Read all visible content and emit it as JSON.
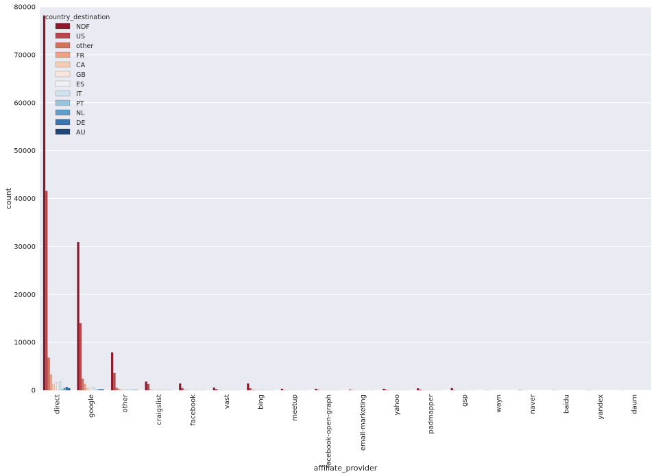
{
  "chart_data": {
    "type": "bar",
    "title": "",
    "xlabel": "affiliate_provider",
    "ylabel": "count",
    "ylim": [
      0,
      80000
    ],
    "yticks": [
      0,
      10000,
      20000,
      30000,
      40000,
      50000,
      60000,
      70000,
      80000
    ],
    "grid": true,
    "legend_title": "country_destination",
    "legend_position": "top-left",
    "categories": [
      "direct",
      "google",
      "other",
      "craigslist",
      "facebook",
      "vast",
      "bing",
      "meetup",
      "facebook-open-graph",
      "email-marketing",
      "yahoo",
      "padmapper",
      "gsp",
      "wayn",
      "naver",
      "baidu",
      "yandex",
      "daum"
    ],
    "series": [
      {
        "name": "NDF",
        "color": "#8c1a2b",
        "values": [
          78200,
          30900,
          7900,
          1800,
          1400,
          550,
          1400,
          300,
          300,
          120,
          300,
          400,
          450,
          10,
          40,
          20,
          15,
          3
        ]
      },
      {
        "name": "US",
        "color": "#b8464b",
        "values": [
          41600,
          14000,
          3600,
          1300,
          450,
          250,
          400,
          60,
          80,
          40,
          120,
          150,
          60,
          3,
          5,
          3,
          2,
          1
        ]
      },
      {
        "name": "other",
        "color": "#d6705e",
        "values": [
          6800,
          2400,
          500,
          80,
          60,
          30,
          60,
          10,
          10,
          5,
          20,
          20,
          10,
          1,
          1,
          1,
          1,
          0
        ]
      },
      {
        "name": "FR",
        "color": "#eda284",
        "values": [
          3300,
          1300,
          300,
          60,
          50,
          20,
          50,
          5,
          10,
          3,
          10,
          10,
          5,
          0,
          1,
          0,
          0,
          0
        ]
      },
      {
        "name": "CA",
        "color": "#f7cdb4",
        "values": [
          1200,
          400,
          100,
          20,
          20,
          10,
          20,
          3,
          3,
          2,
          5,
          5,
          2,
          0,
          0,
          0,
          0,
          0
        ]
      },
      {
        "name": "GB",
        "color": "#f9e7dd",
        "values": [
          1600,
          550,
          120,
          30,
          20,
          10,
          20,
          3,
          3,
          2,
          5,
          5,
          2,
          0,
          0,
          0,
          0,
          0
        ]
      },
      {
        "name": "ES",
        "color": "#eef1f4",
        "values": [
          1700,
          600,
          150,
          30,
          20,
          10,
          25,
          3,
          3,
          2,
          5,
          5,
          2,
          0,
          0,
          0,
          0,
          0
        ]
      },
      {
        "name": "IT",
        "color": "#cfe2ee",
        "values": [
          1900,
          700,
          150,
          40,
          25,
          10,
          25,
          3,
          3,
          2,
          5,
          5,
          2,
          0,
          0,
          0,
          0,
          0
        ]
      },
      {
        "name": "PT",
        "color": "#98c4de",
        "values": [
          200,
          80,
          20,
          5,
          5,
          2,
          5,
          1,
          1,
          0,
          1,
          1,
          0,
          0,
          0,
          0,
          0,
          0
        ]
      },
      {
        "name": "NL",
        "color": "#5f9ec9",
        "values": [
          500,
          200,
          50,
          10,
          8,
          3,
          8,
          1,
          1,
          1,
          2,
          2,
          1,
          0,
          0,
          0,
          0,
          0
        ]
      },
      {
        "name": "DE",
        "color": "#3a75ad",
        "values": [
          700,
          250,
          60,
          12,
          10,
          4,
          10,
          1,
          1,
          1,
          2,
          2,
          1,
          0,
          0,
          0,
          0,
          0
        ]
      },
      {
        "name": "AU",
        "color": "#23467a",
        "values": [
          400,
          150,
          40,
          8,
          6,
          2,
          6,
          1,
          1,
          0,
          1,
          1,
          0,
          0,
          0,
          0,
          0,
          0
        ]
      }
    ]
  }
}
